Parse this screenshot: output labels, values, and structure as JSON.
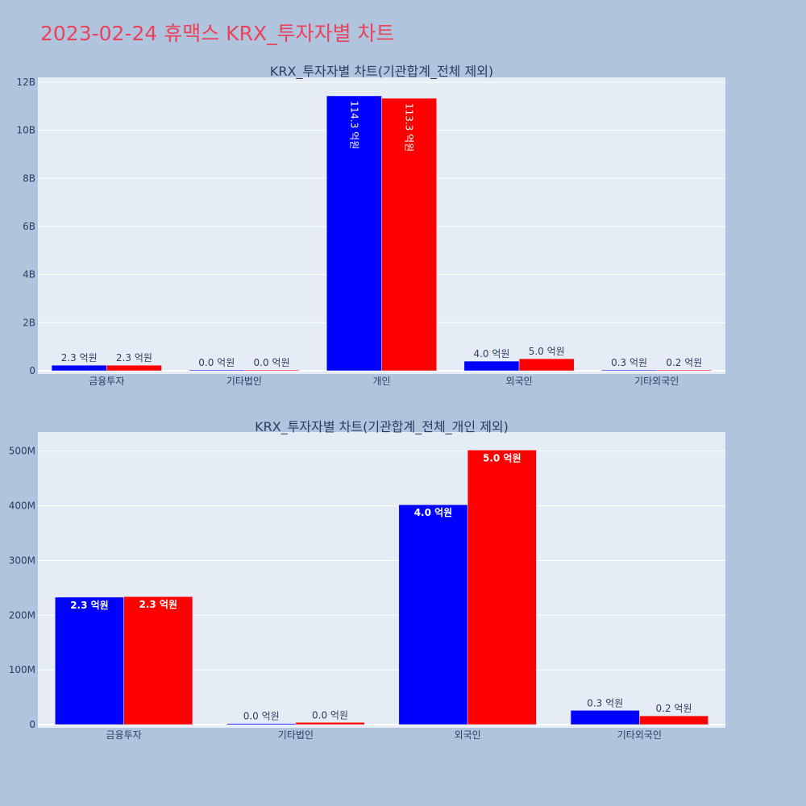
{
  "page": {
    "title": "2023-02-24 휴맥스 KRX_투자자별 차트"
  },
  "colors": {
    "background": "#b0c4de",
    "plot_bg": "#e5ecf6",
    "title": "#e8435a",
    "series_buy": "#0000ff",
    "series_sell": "#ff0000",
    "text": "#2a3f5f"
  },
  "chart_data": [
    {
      "type": "bar",
      "title": "KRX_투자자별 차트(기관합계_전체 제외)",
      "categories": [
        "금융투자",
        "기타법인",
        "개인",
        "외국인",
        "기타외국인"
      ],
      "ylim": [
        0,
        12200000000
      ],
      "yticks": [
        0,
        2000000000,
        4000000000,
        6000000000,
        8000000000,
        10000000000,
        12000000000
      ],
      "ytick_labels": [
        "0",
        "2B",
        "4B",
        "6B",
        "8B",
        "10B",
        "12B"
      ],
      "grid": true,
      "series": [
        {
          "values": [
            230000000,
            2000000,
            11430000000,
            400000000,
            25000000
          ],
          "labels": [
            "2.3 억원",
            "0.0 억원",
            "114.3 억원",
            "4.0 억원",
            "0.3 억원"
          ],
          "color": "#0000ff"
        },
        {
          "values": [
            230000000,
            2000000,
            11330000000,
            500000000,
            15000000
          ],
          "labels": [
            "2.3 억원",
            "0.0 억원",
            "113.3 억원",
            "5.0 억원",
            "0.2 억원"
          ],
          "color": "#ff0000"
        }
      ]
    },
    {
      "type": "bar",
      "title": "KRX_투자자별 차트(기관합계_전체_개인 제외)",
      "categories": [
        "금융투자",
        "기타법인",
        "외국인",
        "기타외국인"
      ],
      "ylim": [
        0,
        535000000
      ],
      "yticks": [
        0,
        100000000,
        200000000,
        300000000,
        400000000,
        500000000
      ],
      "ytick_labels": [
        "0",
        "100M",
        "200M",
        "300M",
        "400M",
        "500M"
      ],
      "grid": true,
      "series": [
        {
          "values": [
            233000000,
            2000000,
            402000000,
            26000000
          ],
          "labels": [
            "2.3 억원",
            "0.0 억원",
            "4.0 억원",
            "0.3 억원"
          ],
          "color": "#0000ff"
        },
        {
          "values": [
            234000000,
            4000000,
            502000000,
            16000000
          ],
          "labels": [
            "2.3 억원",
            "0.0 억원",
            "5.0 억원",
            "0.2 억원"
          ],
          "color": "#ff0000"
        }
      ]
    }
  ]
}
